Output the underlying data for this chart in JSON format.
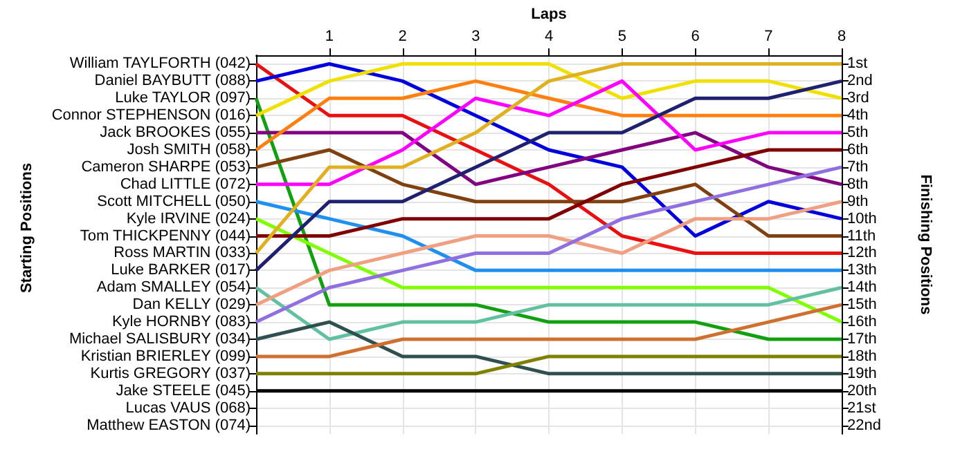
{
  "chart_data": {
    "type": "line",
    "xlabel": "Laps",
    "annotations": [
      "Starting Positions"
    ],
    "y2label": "Finishing Positions",
    "x": [
      0,
      1,
      2,
      3,
      4,
      5,
      6,
      7,
      8
    ],
    "xlim": [
      0,
      8
    ],
    "xticks": [
      1,
      2,
      3,
      4,
      5,
      6,
      7,
      8
    ],
    "y2lim": [
      22.5,
      0.5
    ],
    "y_categories": [
      "William TAYLFORTH (042)",
      "Daniel BAYBUTT (088)",
      "Luke TAYLOR (097)",
      "Connor STEPHENSON (016)",
      "Jack BROOKES (055)",
      "Josh SMITH (058)",
      "Cameron SHARPE (053)",
      "Chad LITTLE (072)",
      "Scott MITCHELL (050)",
      "Kyle IRVINE (024)",
      "Tom THICKPENNY (044)",
      "Ross MARTIN (033)",
      "Luke BARKER (017)",
      "Adam SMALLEY (054)",
      "Dan KELLY (029)",
      "Kyle HORNBY (083)",
      "Michael SALISBURY (034)",
      "Kristian BRIERLEY (099)",
      "Kurtis GREGORY (037)",
      "Jake STEELE (045)",
      "Lucas VAUS (068)",
      "Matthew EASTON (074)"
    ],
    "y2ticks": [
      {
        "value": 1,
        "label": "1st"
      },
      {
        "value": 2,
        "label": "2nd"
      },
      {
        "value": 3,
        "label": "3rd"
      },
      {
        "value": 4,
        "label": "4th"
      },
      {
        "value": 5,
        "label": "5th"
      },
      {
        "value": 6,
        "label": "6th"
      },
      {
        "value": 7,
        "label": "7th"
      },
      {
        "value": 8,
        "label": "8th"
      },
      {
        "value": 9,
        "label": "9th"
      },
      {
        "value": 10,
        "label": "10th"
      },
      {
        "value": 11,
        "label": "11th"
      },
      {
        "value": 12,
        "label": "12th"
      },
      {
        "value": 13,
        "label": "13th"
      },
      {
        "value": 14,
        "label": "14th"
      },
      {
        "value": 15,
        "label": "15th"
      },
      {
        "value": 16,
        "label": "16th"
      },
      {
        "value": 17,
        "label": "17th"
      },
      {
        "value": 18,
        "label": "18th"
      },
      {
        "value": 19,
        "label": "19th"
      },
      {
        "value": 20,
        "label": "20th"
      },
      {
        "value": 21,
        "label": "21st"
      },
      {
        "value": 22,
        "label": "22nd"
      }
    ],
    "grid": true,
    "marker": "none",
    "line_style": "solid",
    "series": [
      {
        "axis": "y2",
        "color": "#e81010",
        "values": [
          1,
          4,
          4,
          6,
          8,
          11,
          12,
          12,
          12
        ]
      },
      {
        "axis": "y2",
        "color": "#0000dd",
        "values": [
          2,
          1,
          2,
          4,
          6,
          7,
          11,
          9,
          10
        ]
      },
      {
        "axis": "y2",
        "color": "#10a010",
        "values": [
          3,
          15,
          15,
          15,
          16,
          16,
          16,
          17,
          17
        ]
      },
      {
        "axis": "y2",
        "color": "#f0e000",
        "values": [
          4,
          2,
          1,
          1,
          1,
          3,
          2,
          2,
          3
        ]
      },
      {
        "axis": "y2",
        "color": "#800080",
        "values": [
          5,
          5,
          5,
          8,
          7,
          6,
          5,
          7,
          8
        ]
      },
      {
        "axis": "y2",
        "color": "#ff8010",
        "values": [
          6,
          3,
          3,
          2,
          3,
          4,
          4,
          4,
          4
        ]
      },
      {
        "axis": "y2",
        "color": "#804010",
        "values": [
          7,
          6,
          8,
          9,
          9,
          9,
          8,
          11,
          11
        ]
      },
      {
        "axis": "y2",
        "color": "#ff00ff",
        "values": [
          8,
          8,
          6,
          3,
          4,
          2,
          6,
          5,
          5
        ]
      },
      {
        "axis": "y2",
        "color": "#2090f0",
        "values": [
          9,
          10,
          11,
          13,
          13,
          13,
          13,
          13,
          13
        ]
      },
      {
        "axis": "y2",
        "color": "#80ff00",
        "values": [
          10,
          12,
          14,
          14,
          14,
          14,
          14,
          14,
          16
        ]
      },
      {
        "axis": "y2",
        "color": "#800000",
        "values": [
          11,
          11,
          10,
          10,
          10,
          8,
          7,
          6,
          6
        ]
      },
      {
        "axis": "y2",
        "color": "#e0b020",
        "values": [
          12,
          7,
          7,
          5,
          2,
          1,
          1,
          1,
          1
        ]
      },
      {
        "axis": "y2",
        "color": "#202070",
        "values": [
          13,
          9,
          9,
          7,
          5,
          5,
          3,
          3,
          2
        ]
      },
      {
        "axis": "y2",
        "color": "#60c0a0",
        "values": [
          14,
          17,
          16,
          16,
          15,
          15,
          15,
          15,
          14
        ]
      },
      {
        "axis": "y2",
        "color": "#f0a080",
        "values": [
          15,
          13,
          12,
          11,
          11,
          12,
          10,
          10,
          9
        ]
      },
      {
        "axis": "y2",
        "color": "#9070e0",
        "values": [
          16,
          14,
          13,
          12,
          12,
          10,
          9,
          8,
          7
        ]
      },
      {
        "axis": "y2",
        "color": "#305050",
        "values": [
          17,
          16,
          18,
          18,
          19,
          19,
          19,
          19,
          19
        ]
      },
      {
        "axis": "y2",
        "color": "#d07030",
        "values": [
          18,
          18,
          17,
          17,
          17,
          17,
          17,
          16,
          15
        ]
      },
      {
        "axis": "y2",
        "color": "#808000",
        "values": [
          19,
          19,
          19,
          19,
          18,
          18,
          18,
          18,
          18
        ]
      },
      {
        "axis": "y2",
        "color": "#000000",
        "values": [
          20,
          20,
          20,
          20,
          20,
          20,
          20,
          20,
          20
        ]
      }
    ]
  }
}
